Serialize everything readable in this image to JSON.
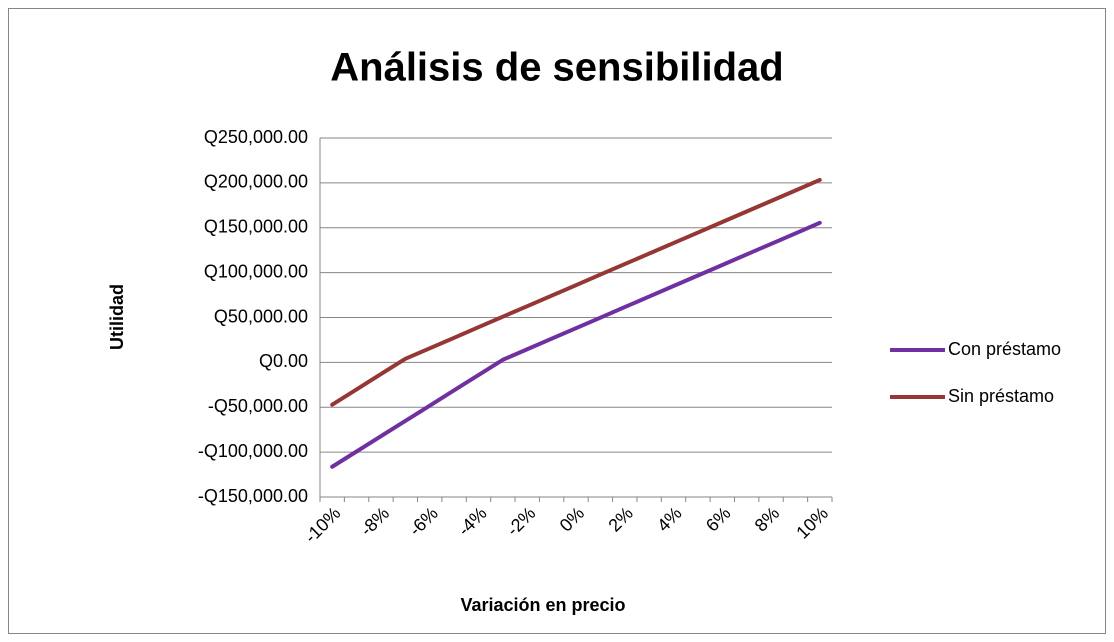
{
  "chart_data": {
    "type": "line",
    "title": "Análisis de sensibilidad",
    "xlabel": "Variación en precio",
    "ylabel": "Utilidad",
    "categories": [
      "-10%",
      null,
      "-8%",
      null,
      "-6%",
      null,
      "-4%",
      null,
      "-2%",
      null,
      "0%",
      null,
      "2%",
      null,
      "4%",
      null,
      "6%",
      null,
      "8%",
      null,
      "10%"
    ],
    "series": [
      {
        "name": "Con préstamo",
        "color": "#7030a0",
        "values": [
          -116300,
          -99300,
          -82200,
          -65200,
          -48200,
          -31100,
          -14100,
          2900,
          14600,
          26400,
          38100,
          49800,
          61600,
          73300,
          85100,
          96800,
          108500,
          120300,
          132000,
          143700,
          155500
        ]
      },
      {
        "name": "Sin préstamo",
        "color": "#953735",
        "values": [
          -47200,
          -30100,
          -13000,
          4000,
          15700,
          27400,
          39200,
          50900,
          62600,
          74300,
          86000,
          97800,
          109500,
          121200,
          132900,
          144600,
          156400,
          168100,
          179800,
          191500,
          203300
        ]
      }
    ],
    "ylim": [
      -150000,
      250000
    ],
    "yticks": [
      {
        "value": -150000,
        "label": "-Q150,000.00"
      },
      {
        "value": -100000,
        "label": "-Q100,000.00"
      },
      {
        "value": -50000,
        "label": "-Q50,000.00"
      },
      {
        "value": 0,
        "label": "Q0.00"
      },
      {
        "value": 50000,
        "label": "Q50,000.00"
      },
      {
        "value": 100000,
        "label": "Q100,000.00"
      },
      {
        "value": 150000,
        "label": "Q150,000.00"
      },
      {
        "value": 200000,
        "label": "Q200,000.00"
      },
      {
        "value": 250000,
        "label": "Q250,000.00"
      }
    ],
    "grid": true,
    "legend": "right"
  }
}
